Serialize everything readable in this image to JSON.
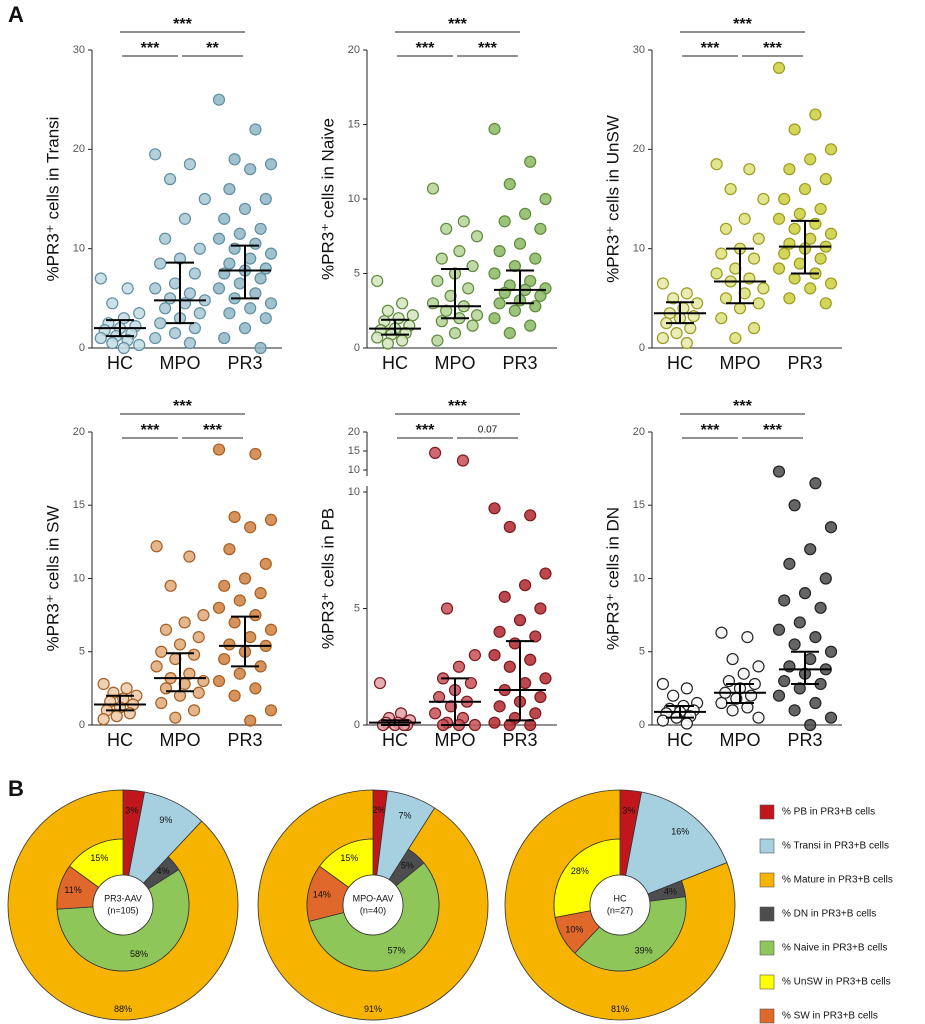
{
  "panel_labels": [
    "A",
    "B"
  ],
  "chart_data": [
    {
      "type": "strip",
      "ylabel": "%PR3⁺ cells in Transi",
      "categories": [
        "HC",
        "MPO",
        "PR3"
      ],
      "ylim": [
        0,
        30
      ],
      "yticks": [
        0,
        10,
        20,
        30
      ],
      "groups": [
        {
          "color": "#c4dce4",
          "edge": "#5f8fa2",
          "median": 2,
          "q1": 1.2,
          "q3": 2.8,
          "values": [
            7,
            6,
            4.5,
            3.5,
            3,
            2.5,
            2.2,
            2,
            1.8,
            1.5,
            1.2,
            1,
            0.8,
            0.5,
            0.3,
            0
          ]
        },
        {
          "color": "#a8c8d4",
          "edge": "#5f8fa2",
          "median": 4.8,
          "q1": 2.5,
          "q3": 8.6,
          "values": [
            19.5,
            18.5,
            17,
            15,
            13,
            11,
            10,
            9,
            8.5,
            7.5,
            6.5,
            6,
            5.5,
            5,
            4.8,
            4.5,
            4,
            3.5,
            3,
            2.5,
            2,
            1.5,
            1,
            0.5
          ]
        },
        {
          "color": "#8fb6c5",
          "edge": "#5f8fa2",
          "median": 7.8,
          "q1": 5,
          "q3": 10.3,
          "values": [
            25,
            22,
            19,
            18.5,
            18,
            16,
            15,
            14,
            13,
            12,
            11.5,
            11,
            10.5,
            10,
            9.5,
            9,
            8.5,
            8,
            7.8,
            7.5,
            7,
            6.5,
            6,
            5.5,
            5,
            4.5,
            4,
            3.5,
            3,
            2,
            1,
            0
          ]
        }
      ],
      "brackets": [
        {
          "from": 0,
          "to": 2,
          "label": "***"
        },
        {
          "from": 0,
          "to": 1,
          "label": "***"
        },
        {
          "from": 1,
          "to": 2,
          "label": "**"
        }
      ]
    },
    {
      "type": "strip",
      "ylabel": "%PR3⁺ cells in Naive",
      "categories": [
        "HC",
        "MPO",
        "PR3"
      ],
      "ylim": [
        0,
        20
      ],
      "yticks": [
        0,
        5,
        10,
        15,
        20
      ],
      "groups": [
        {
          "color": "#d4e6c0",
          "edge": "#5f8a3c",
          "median": 1.3,
          "q1": 0.9,
          "q3": 1.9,
          "values": [
            4.5,
            3,
            2.5,
            2.2,
            2,
            1.8,
            1.5,
            1.3,
            1.2,
            1,
            0.9,
            0.7,
            0.5,
            0.3
          ]
        },
        {
          "color": "#b5d496",
          "edge": "#5f8a3c",
          "median": 2.8,
          "q1": 2,
          "q3": 5.3,
          "values": [
            10.7,
            8.5,
            8,
            7.5,
            6.5,
            6,
            5.5,
            5,
            4.5,
            4,
            3.5,
            3,
            2.8,
            2.5,
            2.2,
            2,
            1.8,
            1.5,
            1,
            0.5
          ]
        },
        {
          "color": "#8ab862",
          "edge": "#5f8a3c",
          "median": 3.9,
          "q1": 3,
          "q3": 5.2,
          "values": [
            14.7,
            12.5,
            11,
            10,
            9,
            8.5,
            8,
            7,
            6.5,
            6,
            5.5,
            5,
            4.5,
            4.2,
            4,
            3.9,
            3.7,
            3.5,
            3.2,
            3,
            2.8,
            2.5,
            2,
            1.5,
            1
          ]
        }
      ],
      "brackets": [
        {
          "from": 0,
          "to": 2,
          "label": "***"
        },
        {
          "from": 0,
          "to": 1,
          "label": "***"
        },
        {
          "from": 1,
          "to": 2,
          "label": "***"
        }
      ]
    },
    {
      "type": "strip",
      "ylabel": "%PR3⁺ cells in UnSW",
      "categories": [
        "HC",
        "MPO",
        "PR3"
      ],
      "ylim": [
        0,
        30
      ],
      "yticks": [
        0,
        10,
        20,
        30
      ],
      "groups": [
        {
          "color": "#e6e8a8",
          "edge": "#9a9c1f",
          "median": 3.5,
          "q1": 2.5,
          "q3": 4.6,
          "values": [
            6.5,
            5.5,
            5,
            4.5,
            4,
            3.5,
            3.2,
            3,
            2.5,
            2,
            1.5,
            1,
            0.5
          ]
        },
        {
          "color": "#dde07a",
          "edge": "#9a9c1f",
          "median": 6.7,
          "q1": 4.5,
          "q3": 10,
          "values": [
            18.5,
            18,
            16,
            15,
            13,
            12,
            11,
            10,
            9.5,
            9,
            8,
            7.5,
            7,
            6.7,
            6,
            5.5,
            5,
            4.5,
            4,
            3,
            2,
            1
          ]
        },
        {
          "color": "#cbcf3c",
          "edge": "#9a9c1f",
          "median": 10.2,
          "q1": 7.5,
          "q3": 12.8,
          "values": [
            28.2,
            23.5,
            22,
            20,
            19,
            18,
            17,
            16,
            15,
            14,
            13.5,
            13,
            12.5,
            12,
            11.5,
            11,
            10.5,
            10.2,
            10,
            9.5,
            9,
            8.5,
            8,
            7.5,
            7,
            6.5,
            6,
            5,
            4.5
          ]
        }
      ],
      "brackets": [
        {
          "from": 0,
          "to": 2,
          "label": "***"
        },
        {
          "from": 0,
          "to": 1,
          "label": "***"
        },
        {
          "from": 1,
          "to": 2,
          "label": "***"
        }
      ]
    },
    {
      "type": "strip",
      "ylabel": "%PR3⁺ cells in SW",
      "categories": [
        "HC",
        "MPO",
        "PR3"
      ],
      "ylim": [
        0,
        20
      ],
      "yticks": [
        0,
        5,
        10,
        15,
        20
      ],
      "groups": [
        {
          "color": "#eccaa8",
          "edge": "#a55f22",
          "median": 1.4,
          "q1": 1,
          "q3": 2,
          "values": [
            2.8,
            2.5,
            2.2,
            2,
            1.8,
            1.6,
            1.4,
            1.2,
            1,
            0.8,
            0.6,
            0.4
          ]
        },
        {
          "color": "#e0a878",
          "edge": "#a55f22",
          "median": 3.2,
          "q1": 2.3,
          "q3": 4.9,
          "values": [
            12.2,
            11.5,
            9.5,
            7.5,
            7,
            6.5,
            6,
            5.5,
            5,
            4.8,
            4.5,
            4,
            3.5,
            3.2,
            3,
            2.8,
            2.5,
            2.2,
            2,
            1.5,
            1,
            0.5
          ]
        },
        {
          "color": "#d08040",
          "edge": "#a55f22",
          "median": 5.4,
          "q1": 4,
          "q3": 7.4,
          "values": [
            18.8,
            18.5,
            14.2,
            14,
            13.5,
            12,
            11,
            10,
            9.5,
            9,
            8.5,
            8,
            7.5,
            7,
            6.5,
            6,
            5.5,
            5.4,
            5,
            4.5,
            4,
            3.5,
            3,
            2.5,
            2,
            1,
            0.3
          ]
        }
      ],
      "brackets": [
        {
          "from": 0,
          "to": 2,
          "label": "***"
        },
        {
          "from": 0,
          "to": 1,
          "label": "***"
        },
        {
          "from": 1,
          "to": 2,
          "label": "***"
        }
      ]
    },
    {
      "type": "strip",
      "ylabel": "%PR3⁺ cells in PB",
      "categories": [
        "HC",
        "MPO",
        "PR3"
      ],
      "ylim": [
        0,
        20
      ],
      "yticks": [
        0,
        5,
        10,
        15,
        20
      ],
      "ybreak": 10,
      "groups": [
        {
          "color": "#e0a0a4",
          "edge": "#7a1a1f",
          "median": 0.1,
          "q1": 0,
          "q3": 0.2,
          "values": [
            1.8,
            0.5,
            0.3,
            0.2,
            0.1,
            0.1,
            0,
            0,
            0,
            0
          ]
        },
        {
          "color": "#c85058",
          "edge": "#7a1a1f",
          "median": 1,
          "q1": 0,
          "q3": 2,
          "values": [
            14.5,
            12.5,
            5,
            3,
            2.5,
            2,
            1.8,
            1.5,
            1.2,
            1,
            0.8,
            0.5,
            0.3,
            0.1,
            0,
            0,
            0
          ]
        },
        {
          "color": "#b0282f",
          "edge": "#7a1a1f",
          "median": 1.5,
          "q1": 0.2,
          "q3": 3.6,
          "values": [
            9.3,
            9,
            8.5,
            6.5,
            6,
            5.5,
            5,
            4.5,
            4,
            3.8,
            3.5,
            3,
            2.8,
            2.5,
            2,
            1.8,
            1.5,
            1.2,
            1,
            0.8,
            0.5,
            0.3,
            0.1,
            0,
            0
          ]
        }
      ],
      "brackets": [
        {
          "from": 0,
          "to": 2,
          "label": "***"
        },
        {
          "from": 0,
          "to": 1,
          "label": "***"
        },
        {
          "from": 1,
          "to": 2,
          "label": "0.07"
        }
      ]
    },
    {
      "type": "strip",
      "ylabel": "%PR3⁺ cells in DN",
      "categories": [
        "HC",
        "MPO",
        "PR3"
      ],
      "ylim": [
        0,
        20
      ],
      "yticks": [
        0,
        5,
        10,
        15,
        20
      ],
      "groups": [
        {
          "color": "#ffffff",
          "edge": "#222222",
          "median": 0.9,
          "q1": 0.5,
          "q3": 1.3,
          "values": [
            2.8,
            2.5,
            2,
            1.5,
            1.3,
            1.1,
            1,
            0.9,
            0.8,
            0.6,
            0.5,
            0.3,
            0.1
          ]
        },
        {
          "color": "#f2f2f2",
          "edge": "#222222",
          "median": 2.2,
          "q1": 1.5,
          "q3": 2.8,
          "values": [
            6.3,
            6,
            4.5,
            4,
            3.5,
            3,
            2.8,
            2.5,
            2.2,
            2,
            1.8,
            1.5,
            1.2,
            1,
            0.5
          ]
        },
        {
          "color": "#4a4a4a",
          "edge": "#222222",
          "median": 3.8,
          "q1": 2.8,
          "q3": 5,
          "values": [
            17.3,
            16.5,
            15,
            13.5,
            12,
            11,
            10,
            9,
            8.5,
            8,
            7,
            6.5,
            6,
            5.5,
            5,
            4.5,
            4,
            3.8,
            3.5,
            3,
            2.8,
            2.5,
            2,
            1.5,
            1,
            0.5,
            0
          ]
        }
      ],
      "brackets": [
        {
          "from": 0,
          "to": 2,
          "label": "***"
        },
        {
          "from": 0,
          "to": 1,
          "label": "***"
        },
        {
          "from": 1,
          "to": 2,
          "label": "***"
        }
      ]
    },
    {
      "type": "donut",
      "center_label": "PR3-AAV",
      "center_sublabel": "(n=105)",
      "outer": {
        "values": [
          3,
          9,
          88
        ],
        "value_labels": [
          "3%",
          "9%",
          "88%"
        ],
        "colors": [
          "#c0161c",
          "#a6cfe0",
          "#f6b400"
        ]
      },
      "inner": {
        "values": [
          4,
          58,
          11,
          15
        ],
        "value_labels": [
          "4%",
          "58%",
          "11%",
          "15%"
        ],
        "colors": [
          "#4d4d4f",
          "#8fc65a",
          "#e0682a",
          "#ffff00"
        ]
      }
    },
    {
      "type": "donut",
      "center_label": "MPO-AAV",
      "center_sublabel": "(n=40)",
      "outer": {
        "values": [
          2,
          7,
          91
        ],
        "value_labels": [
          "2%",
          "7%",
          "91%"
        ],
        "colors": [
          "#c0161c",
          "#a6cfe0",
          "#f6b400"
        ]
      },
      "inner": {
        "values": [
          5,
          57,
          14,
          15
        ],
        "value_labels": [
          "5%",
          "57%",
          "14%",
          "15%"
        ],
        "colors": [
          "#4d4d4f",
          "#8fc65a",
          "#e0682a",
          "#ffff00"
        ]
      }
    },
    {
      "type": "donut",
      "center_label": "HC",
      "center_sublabel": "(n=27)",
      "outer": {
        "values": [
          3,
          16,
          81
        ],
        "value_labels": [
          "3%",
          "16%",
          "81%"
        ],
        "colors": [
          "#c0161c",
          "#a6cfe0",
          "#f6b400"
        ]
      },
      "inner": {
        "values": [
          4,
          39,
          10,
          28
        ],
        "value_labels": [
          "4%",
          "39%",
          "10%",
          "28%"
        ],
        "colors": [
          "#4d4d4f",
          "#8fc65a",
          "#e0682a",
          "#ffff00"
        ]
      }
    }
  ],
  "legend": [
    {
      "name": "% PB in PR3+B cells",
      "color": "#c0161c"
    },
    {
      "name": "% Transi in PR3+B cells",
      "color": "#a6cfe0"
    },
    {
      "name": "% Mature in PR3+B cells",
      "color": "#f6b400"
    },
    {
      "name": "% DN in PR3+B cells",
      "color": "#4d4d4f"
    },
    {
      "name": "% Naive in PR3+B cells",
      "color": "#8fc65a"
    },
    {
      "name": "% UnSW in PR3+B cells",
      "color": "#ffff00"
    },
    {
      "name": "% SW in PR3+B cells",
      "color": "#e0682a"
    }
  ]
}
